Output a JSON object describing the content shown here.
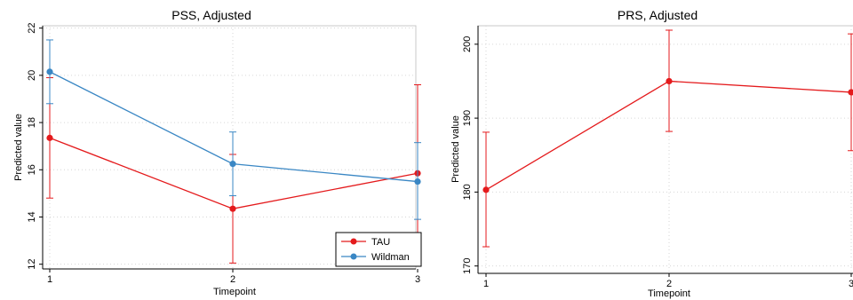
{
  "chart_data": [
    {
      "type": "line",
      "title": "PSS, Adjusted",
      "xlabel": "Timepoint",
      "ylabel": "Predicted value",
      "categories": [
        "1",
        "2",
        "3"
      ],
      "ylim": [
        11.8,
        22.1
      ],
      "yticks": [
        "12",
        "14",
        "16",
        "18",
        "20",
        "22"
      ],
      "grid": true,
      "legend": "bottom-right",
      "series": [
        {
          "name": "TAU",
          "color": "#e41a1c",
          "values": [
            17.35,
            14.35,
            15.85
          ],
          "lower": [
            14.8,
            12.05,
            12.1
          ],
          "upper": [
            19.9,
            16.65,
            19.6
          ]
        },
        {
          "name": "Wildman",
          "color": "#3a87c4",
          "values": [
            20.15,
            16.25,
            15.5
          ],
          "lower": [
            18.8,
            14.9,
            13.9
          ],
          "upper": [
            21.5,
            17.6,
            17.15
          ]
        }
      ]
    },
    {
      "type": "line",
      "title": "PRS, Adjusted",
      "xlabel": "Timepoint",
      "ylabel": "Predicted value",
      "categories": [
        "1",
        "2",
        "3"
      ],
      "ylim": [
        169,
        202.5
      ],
      "yticks": [
        "170",
        "180",
        "190",
        "200"
      ],
      "grid": true,
      "series": [
        {
          "color": "#e41a1c",
          "values": [
            180.3,
            195.0,
            193.5
          ],
          "lower": [
            172.6,
            188.2,
            185.6
          ],
          "upper": [
            188.1,
            201.9,
            201.4
          ]
        }
      ]
    }
  ]
}
